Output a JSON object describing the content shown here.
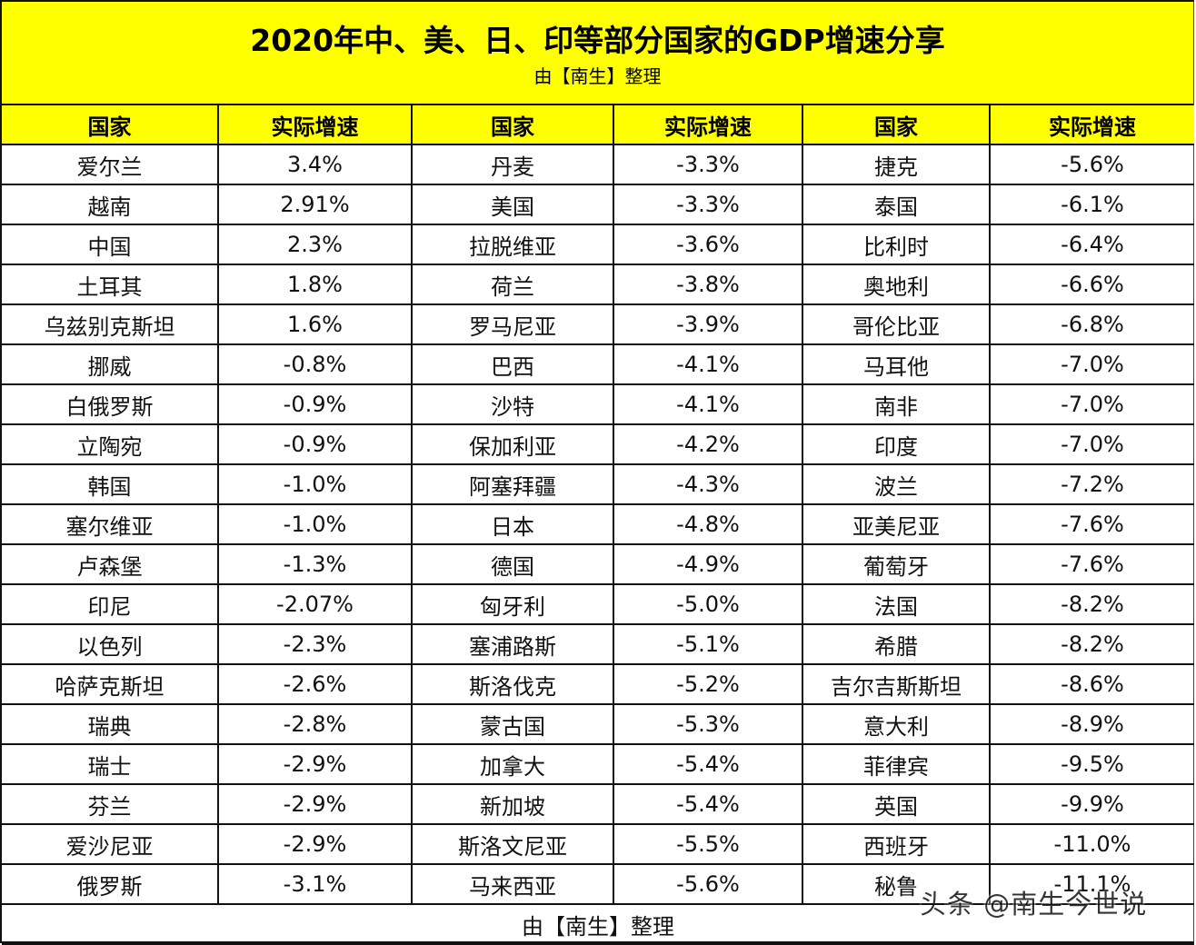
{
  "header": {
    "title": "2020年中、美、日、印等部分国家的GDP增速分享",
    "subtitle": "由【南生】整理"
  },
  "columns": [
    "国家",
    "实际增速",
    "国家",
    "实际增速",
    "国家",
    "实际增速"
  ],
  "colors": {
    "header_bg": "#ffff00",
    "positive_value": "#d42a2a",
    "negative_value": "#111111",
    "border": "#111111"
  },
  "rows": [
    {
      "c1": "爱尔兰",
      "v1": "3.4%",
      "c2": "丹麦",
      "v2": "-3.3%",
      "c3": "捷克",
      "v3": "-5.6%"
    },
    {
      "c1": "越南",
      "v1": "2.91%",
      "c2": "美国",
      "v2": "-3.3%",
      "c3": "泰国",
      "v3": "-6.1%"
    },
    {
      "c1": "中国",
      "v1": "2.3%",
      "c2": "拉脱维亚",
      "v2": "-3.6%",
      "c3": "比利时",
      "v3": "-6.4%"
    },
    {
      "c1": "土耳其",
      "v1": "1.8%",
      "c2": "荷兰",
      "v2": "-3.8%",
      "c3": "奥地利",
      "v3": "-6.6%"
    },
    {
      "c1": "乌兹别克斯坦",
      "v1": "1.6%",
      "c2": "罗马尼亚",
      "v2": "-3.9%",
      "c3": "哥伦比亚",
      "v3": "-6.8%"
    },
    {
      "c1": "挪威",
      "v1": "-0.8%",
      "c2": "巴西",
      "v2": "-4.1%",
      "c3": "马耳他",
      "v3": "-7.0%"
    },
    {
      "c1": "白俄罗斯",
      "v1": "-0.9%",
      "c2": "沙特",
      "v2": "-4.1%",
      "c3": "南非",
      "v3": "-7.0%"
    },
    {
      "c1": "立陶宛",
      "v1": "-0.9%",
      "c2": "保加利亚",
      "v2": "-4.2%",
      "c3": "印度",
      "v3": "-7.0%"
    },
    {
      "c1": "韩国",
      "v1": "-1.0%",
      "c2": "阿塞拜疆",
      "v2": "-4.3%",
      "c3": "波兰",
      "v3": "-7.2%"
    },
    {
      "c1": "塞尔维亚",
      "v1": "-1.0%",
      "c2": "日本",
      "v2": "-4.8%",
      "c3": "亚美尼亚",
      "v3": "-7.6%"
    },
    {
      "c1": "卢森堡",
      "v1": "-1.3%",
      "c2": "德国",
      "v2": "-4.9%",
      "c3": "葡萄牙",
      "v3": "-7.6%"
    },
    {
      "c1": "印尼",
      "v1": "-2.07%",
      "c2": "匈牙利",
      "v2": "-5.0%",
      "c3": "法国",
      "v3": "-8.2%"
    },
    {
      "c1": "以色列",
      "v1": "-2.3%",
      "c2": "塞浦路斯",
      "v2": "-5.1%",
      "c3": "希腊",
      "v3": "-8.2%"
    },
    {
      "c1": "哈萨克斯坦",
      "v1": "-2.6%",
      "c2": "斯洛伐克",
      "v2": "-5.2%",
      "c3": "吉尔吉斯斯坦",
      "v3": "-8.6%"
    },
    {
      "c1": "瑞典",
      "v1": "-2.8%",
      "c2": "蒙古国",
      "v2": "-5.3%",
      "c3": "意大利",
      "v3": "-8.9%"
    },
    {
      "c1": "瑞士",
      "v1": "-2.9%",
      "c2": "加拿大",
      "v2": "-5.4%",
      "c3": "菲律宾",
      "v3": "-9.5%"
    },
    {
      "c1": "芬兰",
      "v1": "-2.9%",
      "c2": "新加坡",
      "v2": "-5.4%",
      "c3": "英国",
      "v3": "-9.9%"
    },
    {
      "c1": "爱沙尼亚",
      "v1": "-2.9%",
      "c2": "斯洛文尼亚",
      "v2": "-5.5%",
      "c3": "西班牙",
      "v3": "-11.0%"
    },
    {
      "c1": "俄罗斯",
      "v1": "-3.1%",
      "c2": "马来西亚",
      "v2": "-5.6%",
      "c3": "秘鲁",
      "v3": "-11.1%"
    }
  ],
  "positive_rows": [
    0,
    1,
    2,
    3,
    4
  ],
  "footer": {
    "text": "由【南生】整理"
  },
  "watermark": {
    "text": "头条 @南生今世说"
  }
}
